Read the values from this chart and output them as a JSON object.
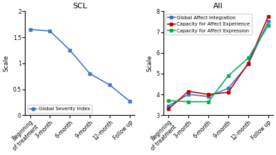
{
  "x_labels": [
    "Beginning\nof treatment",
    "3-month",
    "6-month",
    "9-month",
    "12-month",
    "Follow up"
  ],
  "scl_title": "SCL",
  "aii_title": "AII",
  "scl_ylabel": "Scale",
  "aii_ylabel": "Scale",
  "scl_series": {
    "Global Severity Index": {
      "values": [
        1.65,
        1.62,
        1.25,
        0.8,
        0.58,
        0.27
      ],
      "color": "#4472C4",
      "marker": "s"
    }
  },
  "aii_series": {
    "Global Affect Integration": {
      "values": [
        3.45,
        4.0,
        3.9,
        4.3,
        5.45,
        7.5
      ],
      "color": "#4472C4",
      "marker": "s"
    },
    "Capacity for Affect Experience": {
      "values": [
        3.3,
        4.15,
        4.0,
        4.1,
        5.5,
        7.75
      ],
      "color": "#C00000",
      "marker": "s"
    },
    "Capacity for Affect Expression": {
      "values": [
        3.7,
        3.65,
        3.65,
        4.9,
        5.75,
        7.3
      ],
      "color": "#00B050",
      "marker": "s"
    }
  },
  "scl_ylim": [
    0,
    2.0
  ],
  "scl_yticks": [
    0,
    0.5,
    1.0,
    1.5,
    2.0
  ],
  "aii_ylim": [
    3.0,
    8.0
  ],
  "aii_yticks": [
    3,
    4,
    5,
    6,
    7,
    8
  ],
  "background_color": "#FFFFFF",
  "line_width": 1.2,
  "marker_size": 3.5,
  "tick_font_size": 5.5,
  "label_font_size": 6.5,
  "title_font_size": 8,
  "legend_font_size": 5
}
